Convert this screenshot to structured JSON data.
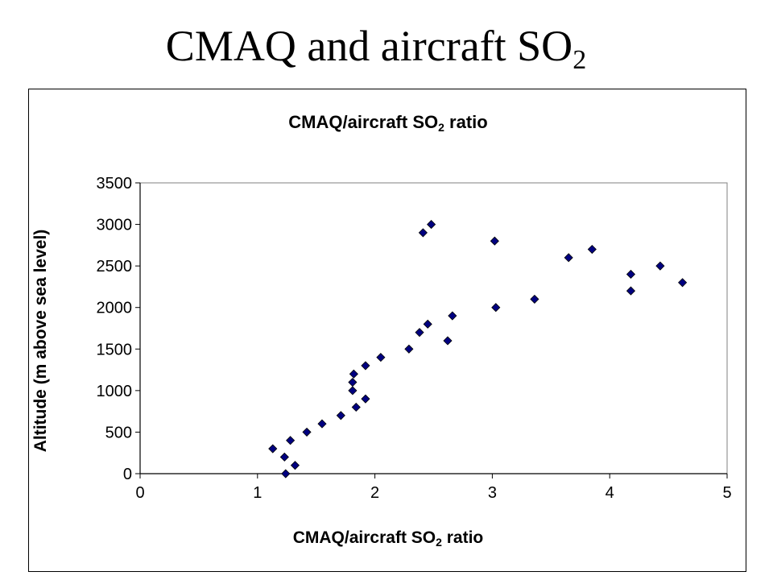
{
  "slide": {
    "title_main": "CMAQ and aircraft SO",
    "title_sub": "2"
  },
  "chart_data": {
    "type": "scatter",
    "title": "CMAQ/aircraft SO2 ratio",
    "title_parts": {
      "pre": "CMAQ/aircraft SO",
      "sub": "2",
      "post": " ratio"
    },
    "xlabel": "CMAQ/aircraft SO2 ratio",
    "xlabel_parts": {
      "pre": "CMAQ/aircraft SO",
      "sub": "2",
      "post": " ratio"
    },
    "ylabel": "Altitude (m above sea level)",
    "xlim": [
      0,
      5
    ],
    "ylim": [
      0,
      3500
    ],
    "xticks": [
      0,
      1,
      2,
      3,
      4,
      5
    ],
    "yticks": [
      0,
      500,
      1000,
      1500,
      2000,
      2500,
      3000,
      3500
    ],
    "grid": false,
    "marker_color": "#000080",
    "series": [
      {
        "points": [
          [
            1.24,
            0
          ],
          [
            1.32,
            100
          ],
          [
            1.23,
            200
          ],
          [
            1.13,
            300
          ],
          [
            1.28,
            400
          ],
          [
            1.42,
            500
          ],
          [
            1.55,
            600
          ],
          [
            1.71,
            700
          ],
          [
            1.84,
            800
          ],
          [
            1.92,
            900
          ],
          [
            1.81,
            1000
          ],
          [
            1.81,
            1100
          ],
          [
            1.82,
            1200
          ],
          [
            1.92,
            1300
          ],
          [
            2.05,
            1400
          ],
          [
            2.29,
            1500
          ],
          [
            2.62,
            1600
          ],
          [
            2.38,
            1700
          ],
          [
            2.45,
            1800
          ],
          [
            2.66,
            1900
          ],
          [
            3.03,
            2000
          ],
          [
            3.36,
            2100
          ],
          [
            4.18,
            2200
          ],
          [
            4.62,
            2300
          ],
          [
            4.18,
            2400
          ],
          [
            4.43,
            2500
          ],
          [
            3.65,
            2600
          ],
          [
            3.85,
            2700
          ],
          [
            3.02,
            2800
          ],
          [
            2.41,
            2900
          ],
          [
            2.48,
            3000
          ]
        ]
      }
    ]
  }
}
